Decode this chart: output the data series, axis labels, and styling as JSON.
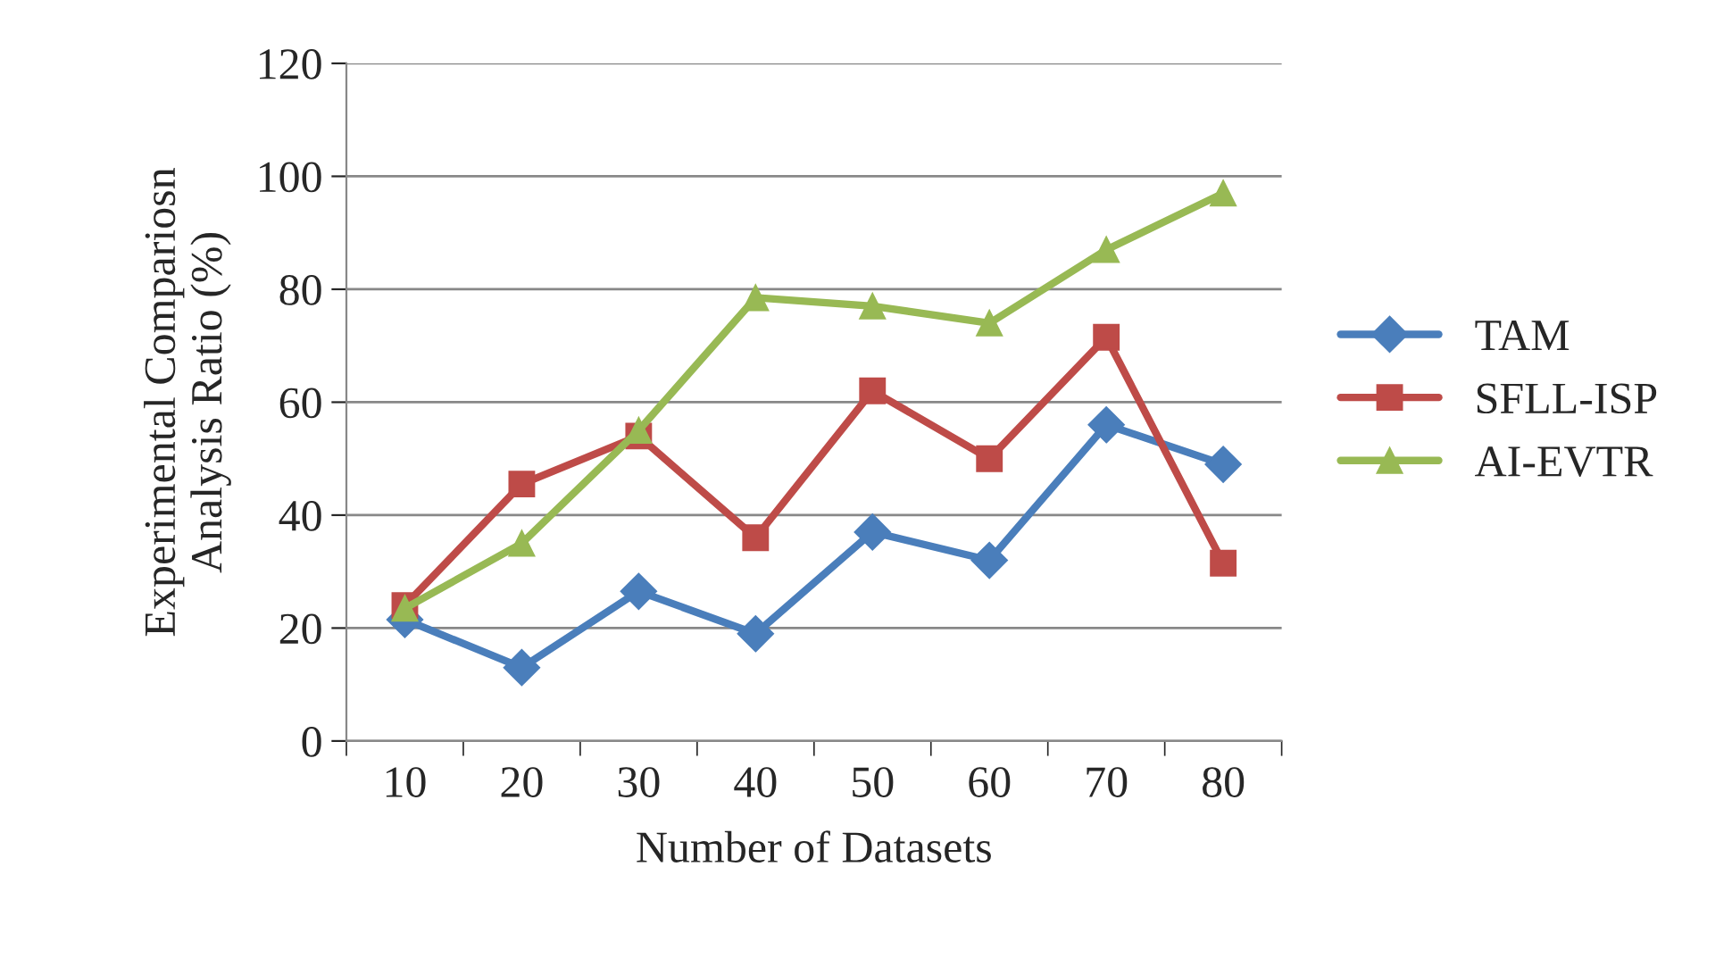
{
  "chart_data": {
    "type": "line",
    "xlabel": "Number of Datasets",
    "ylabel": "Experimental Compariosn\nAnalysis Ratio (%)",
    "categories": [
      "10",
      "20",
      "30",
      "40",
      "50",
      "60",
      "70",
      "80"
    ],
    "series": [
      {
        "name": "TAM",
        "color": "#4a7ebb",
        "marker": "diamond",
        "values": [
          21.5,
          13,
          26.5,
          19,
          37,
          32,
          56,
          49
        ]
      },
      {
        "name": "SFLL-ISP",
        "color": "#be4b48",
        "marker": "square",
        "values": [
          24,
          45.5,
          54,
          36,
          62,
          50,
          71.5,
          31.5
        ]
      },
      {
        "name": "AI-EVTR",
        "color": "#98b954",
        "marker": "triangle",
        "values": [
          23.5,
          35,
          55,
          78.5,
          77,
          74,
          87,
          97
        ]
      }
    ],
    "ylim": [
      0,
      120
    ],
    "yticks": [
      0,
      20,
      40,
      60,
      80,
      100,
      120
    ],
    "grid": "y",
    "legend": "right",
    "line_style": "solid"
  }
}
